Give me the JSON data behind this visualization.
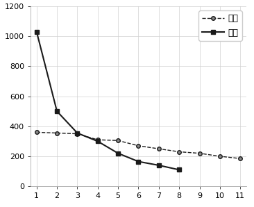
{
  "x": [
    1,
    2,
    3,
    4,
    5,
    6,
    7,
    8,
    9,
    10,
    11
  ],
  "limestone": [
    360,
    355,
    350,
    310,
    305,
    270,
    250,
    230,
    220,
    200,
    185
  ],
  "sandstone": [
    1030,
    500,
    355,
    300,
    220,
    165,
    140,
    110,
    null,
    null,
    null
  ],
  "limestone_label": "灰岩",
  "sandstone_label": "砂岩",
  "ylim": [
    0,
    1200
  ],
  "yticks": [
    0,
    200,
    400,
    600,
    800,
    1000,
    1200
  ],
  "xlim": [
    0.7,
    11.3
  ],
  "xticks": [
    1,
    2,
    3,
    4,
    5,
    6,
    7,
    8,
    9,
    10,
    11
  ],
  "grid_color": "#d0d0d0",
  "line_color": "#1a1a1a",
  "background_color": "#ffffff",
  "legend_loc": "upper right",
  "tick_fontsize": 8,
  "legend_fontsize": 9,
  "marker_size_circle": 4,
  "marker_size_square": 5,
  "linewidth_dashed": 1.0,
  "linewidth_solid": 1.5
}
